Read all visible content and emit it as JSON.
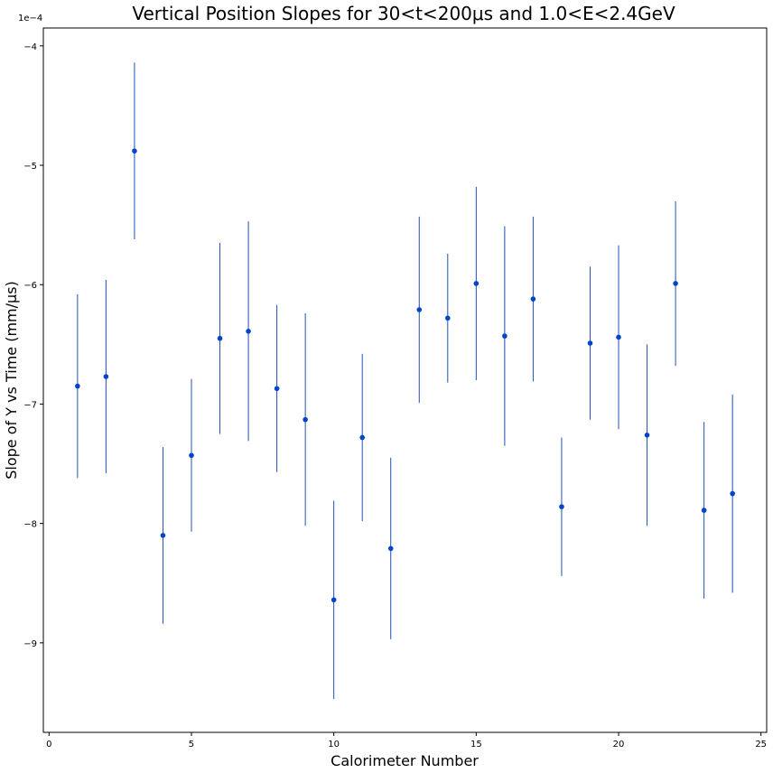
{
  "chart_data": {
    "type": "scatter",
    "title": "Vertical Position Slopes for 30<t<200μs and 1.0<E<2.4GeV",
    "xlabel": "Calorimeter Number",
    "ylabel": "Slope of Y vs Time (mm/μs)",
    "y_offset_label": "1e−4",
    "xlim": [
      -0.2,
      25.2
    ],
    "ylim": [
      -9.75,
      -3.85
    ],
    "x_ticks": [
      0,
      5,
      10,
      15,
      20,
      25
    ],
    "y_ticks": [
      -9,
      -8,
      -7,
      -6,
      -5,
      -4
    ],
    "y_tick_labels": [
      "−9",
      "−8",
      "−7",
      "−6",
      "−5",
      "−4"
    ],
    "grid": false,
    "marker_color": "#0044cc",
    "errorbar_color": "#1f4fb5",
    "x": [
      1,
      2,
      3,
      4,
      5,
      6,
      7,
      8,
      9,
      10,
      11,
      12,
      13,
      14,
      15,
      16,
      17,
      18,
      19,
      20,
      21,
      22,
      23,
      24
    ],
    "y": [
      -6.85,
      -6.77,
      -4.88,
      -8.1,
      -7.43,
      -6.45,
      -6.39,
      -6.87,
      -7.13,
      -8.64,
      -7.28,
      -8.21,
      -6.21,
      -6.28,
      -5.99,
      -6.43,
      -6.12,
      -7.86,
      -6.49,
      -6.44,
      -7.26,
      -5.99,
      -7.89,
      -7.75
    ],
    "yerr": [
      0.77,
      0.81,
      0.74,
      0.74,
      0.64,
      0.8,
      0.92,
      0.7,
      0.89,
      0.83,
      0.7,
      0.76,
      0.78,
      0.54,
      0.81,
      0.92,
      0.69,
      0.58,
      0.64,
      0.77,
      0.76,
      0.69,
      0.74,
      0.83
    ]
  }
}
